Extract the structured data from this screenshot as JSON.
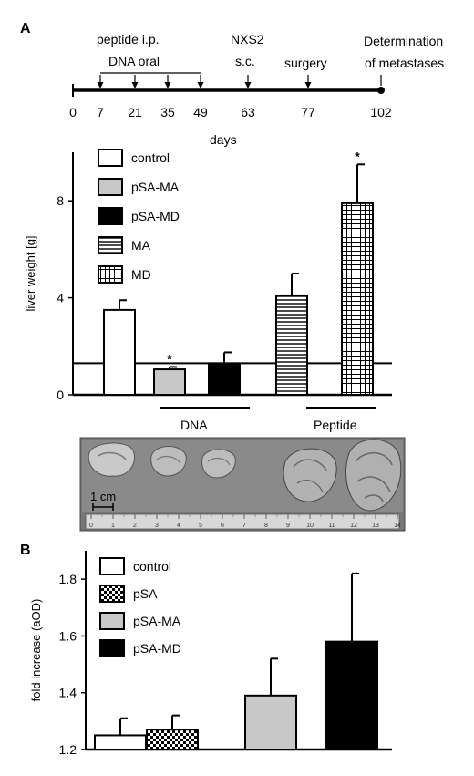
{
  "panel_a": {
    "label": "A",
    "timeline": {
      "ticks": [
        0,
        7,
        21,
        35,
        49,
        63,
        77,
        102
      ],
      "annotations": {
        "peptide": "peptide i.p.",
        "dna": "DNA oral",
        "nxs2_line1": "NXS2",
        "nxs2_line2": "s.c.",
        "surgery": "surgery",
        "determination_line1": "Determination",
        "determination_line2": "of metastases"
      },
      "axis_label": "days"
    },
    "group_labels": {
      "dna": "DNA",
      "peptide": "Peptide"
    },
    "photo": {
      "scale_label": "1 cm",
      "ruler_ticks": [
        "0",
        "1",
        "2",
        "3",
        "4",
        "5",
        "6",
        "7",
        "8",
        "9",
        "10",
        "11",
        "12",
        "13",
        "14"
      ]
    }
  },
  "panel_b": {
    "label": "B"
  },
  "chart_data": [
    {
      "type": "bar",
      "ylabel": "liver weight [g]",
      "ylim": [
        0,
        10
      ],
      "yticks": [
        0,
        4,
        8
      ],
      "reference_line": 1.3,
      "categories": [
        "control",
        "pSA-MA",
        "pSA-MD",
        "MA",
        "MD"
      ],
      "values": [
        3.5,
        1.05,
        1.3,
        4.1,
        7.9
      ],
      "errors": [
        0.4,
        0.1,
        0.45,
        0.9,
        1.6
      ],
      "significance": [
        "",
        "*",
        "",
        "",
        "*"
      ],
      "legend": [
        {
          "label": "control",
          "pattern": "white"
        },
        {
          "label": "pSA-MA",
          "pattern": "gray"
        },
        {
          "label": "pSA-MD",
          "pattern": "black"
        },
        {
          "label": "MA",
          "pattern": "hlines"
        },
        {
          "label": "MD",
          "pattern": "grid"
        }
      ]
    },
    {
      "type": "bar",
      "ylabel": "fold increase (aOD)",
      "ylim": [
        1.2,
        1.9
      ],
      "yticks": [
        1.2,
        1.4,
        1.6,
        1.8
      ],
      "categories": [
        "control",
        "pSA",
        "pSA-MA",
        "pSA-MD"
      ],
      "values": [
        1.25,
        1.27,
        1.39,
        1.58
      ],
      "errors": [
        0.06,
        0.05,
        0.13,
        0.24
      ],
      "legend": [
        {
          "label": "control",
          "pattern": "white"
        },
        {
          "label": "pSA",
          "pattern": "checker"
        },
        {
          "label": "pSA-MA",
          "pattern": "gray"
        },
        {
          "label": "pSA-MD",
          "pattern": "black"
        }
      ]
    }
  ]
}
